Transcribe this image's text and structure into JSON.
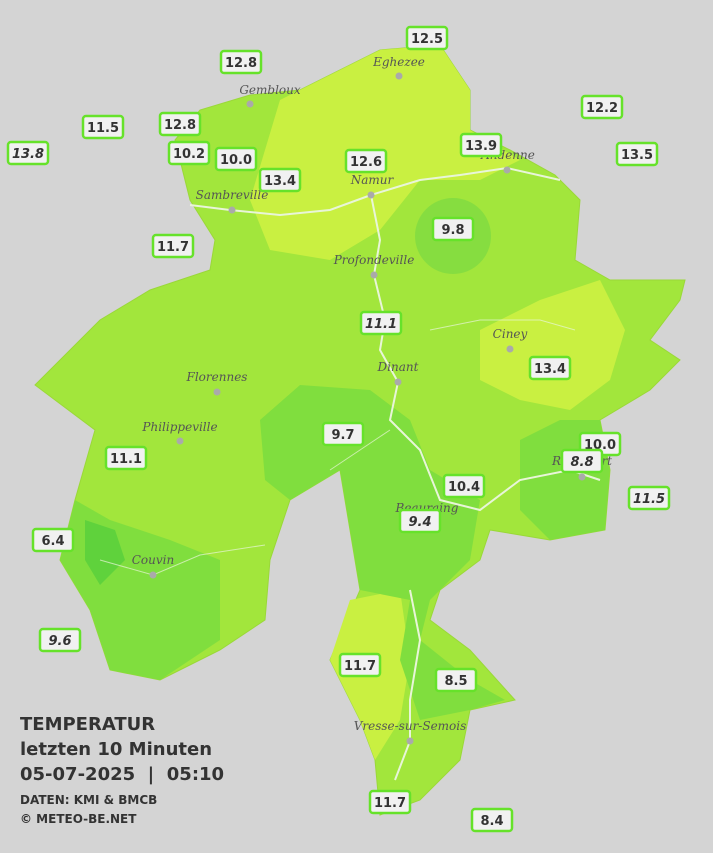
{
  "legend": {
    "title": "TEMPERATUR",
    "period": "letzten 10 Minuten",
    "datetime": "05-07-2025  |  05:10",
    "source": "DATEN: KMI & BMCB",
    "copyright": "© METEO-BE.NET"
  },
  "cities": [
    "Eghezee",
    "Gembloux",
    "Andenne",
    "Namur",
    "Sambreville",
    "Profondeville",
    "Ciney",
    "Dinant",
    "Florennes",
    "Philippeville",
    "Beauraing",
    "Rochefort",
    "Couvin",
    "Vresse-sur-Semois"
  ],
  "stations": [
    {
      "value": "12.5",
      "italic": false
    },
    {
      "value": "12.8",
      "italic": false
    },
    {
      "value": "11.5",
      "italic": false
    },
    {
      "value": "12.8",
      "italic": false
    },
    {
      "value": "13.8",
      "italic": true
    },
    {
      "value": "10.2",
      "italic": false
    },
    {
      "value": "10.0",
      "italic": false
    },
    {
      "value": "13.4",
      "italic": false
    },
    {
      "value": "12.6",
      "italic": false
    },
    {
      "value": "13.9",
      "italic": false
    },
    {
      "value": "12.2",
      "italic": false
    },
    {
      "value": "13.5",
      "italic": false
    },
    {
      "value": "9.8",
      "italic": false
    },
    {
      "value": "11.7",
      "italic": false
    },
    {
      "value": "11.1",
      "italic": true
    },
    {
      "value": "13.4",
      "italic": false
    },
    {
      "value": "9.7",
      "italic": false
    },
    {
      "value": "11.1",
      "italic": false
    },
    {
      "value": "10.0",
      "italic": false
    },
    {
      "value": "8.8",
      "italic": true
    },
    {
      "value": "11.5",
      "italic": true
    },
    {
      "value": "10.4",
      "italic": false
    },
    {
      "value": "9.4",
      "italic": true
    },
    {
      "value": "6.4",
      "italic": false
    },
    {
      "value": "9.6",
      "italic": true
    },
    {
      "value": "11.7",
      "italic": false
    },
    {
      "value": "8.5",
      "italic": false
    },
    {
      "value": "11.7",
      "italic": false
    },
    {
      "value": "8.4",
      "italic": false
    }
  ]
}
